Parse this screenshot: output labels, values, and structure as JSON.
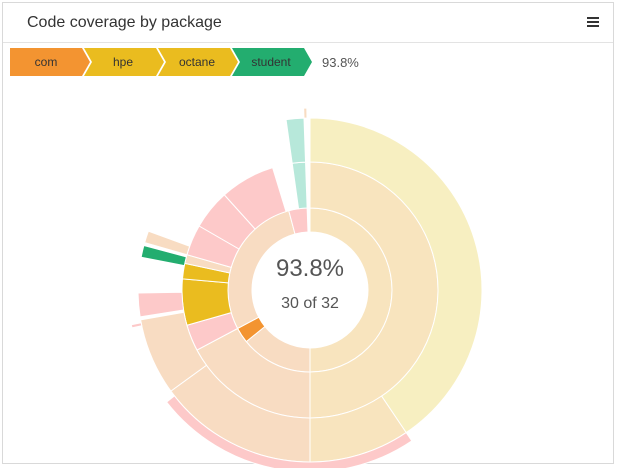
{
  "header": {
    "title": "Code coverage by package",
    "menu_icon": "hamburger-menu-icon"
  },
  "breadcrumb": {
    "items": [
      {
        "label": "com",
        "color": "#f39431"
      },
      {
        "label": "hpe",
        "color": "#eabc1f"
      },
      {
        "label": "octane",
        "color": "#eabc1f"
      },
      {
        "label": "student",
        "color": "#23ad6f"
      }
    ],
    "percent": "93.8%"
  },
  "center": {
    "percent": "93.8%",
    "count": "30 of 32"
  },
  "chart_data": {
    "type": "sunburst",
    "title": "Code coverage by package",
    "value_unit": "degrees of arc",
    "rings": [
      {
        "level": 1,
        "segments": [
          {
            "start": 0,
            "end": 180,
            "color": "#f8e4be"
          },
          {
            "start": 180,
            "end": 231,
            "color": "#f8dcc2"
          },
          {
            "start": 231,
            "end": 242,
            "color": "#f39431"
          },
          {
            "start": 242,
            "end": 345,
            "color": "#f8dcc2"
          },
          {
            "start": 345,
            "end": 358,
            "color": "#fdc9c9"
          }
        ]
      },
      {
        "level": 2,
        "segments": [
          {
            "start": 0,
            "end": 180,
            "color": "#f8e4be"
          },
          {
            "start": 180,
            "end": 242,
            "color": "#f8dcc2"
          },
          {
            "start": 242,
            "end": 254,
            "color": "#fdc9c9"
          },
          {
            "start": 254,
            "end": 275,
            "color": "#eabc1f"
          },
          {
            "start": 275,
            "end": 282,
            "color": "#eabc1f"
          },
          {
            "start": 282,
            "end": 286,
            "color": "#f8dcc2"
          },
          {
            "start": 286,
            "end": 300,
            "color": "#fdc9c9"
          },
          {
            "start": 300,
            "end": 318,
            "color": "#fdc9c9"
          },
          {
            "start": 318,
            "end": 343,
            "color": "#fdc9c9"
          },
          {
            "start": 352,
            "end": 358,
            "color": "#b7e8da"
          }
        ]
      },
      {
        "level": 3,
        "segments": [
          {
            "start": 0,
            "end": 146,
            "color": "#f7efc1"
          },
          {
            "start": 146,
            "end": 180,
            "color": "#f8e4be"
          },
          {
            "start": 180,
            "end": 234,
            "color": "#f8dcc2"
          },
          {
            "start": 234,
            "end": 260,
            "color": "#f8dcc2"
          },
          {
            "start": 261,
            "end": 269,
            "color": "#fdc9c9"
          },
          {
            "start": 281,
            "end": 285,
            "color": "#23ad6f"
          },
          {
            "start": 286,
            "end": 290,
            "color": "#f8dcc2"
          },
          {
            "start": 352,
            "end": 358,
            "color": "#b7e8da"
          }
        ]
      },
      {
        "level": 4,
        "segments": [
          {
            "start": 146,
            "end": 232,
            "color": "#fdc9c9"
          },
          {
            "start": 258,
            "end": 259,
            "color": "#fdc9c9"
          },
          {
            "start": 358,
            "end": 359,
            "color": "#f8dcc2"
          }
        ]
      }
    ]
  }
}
